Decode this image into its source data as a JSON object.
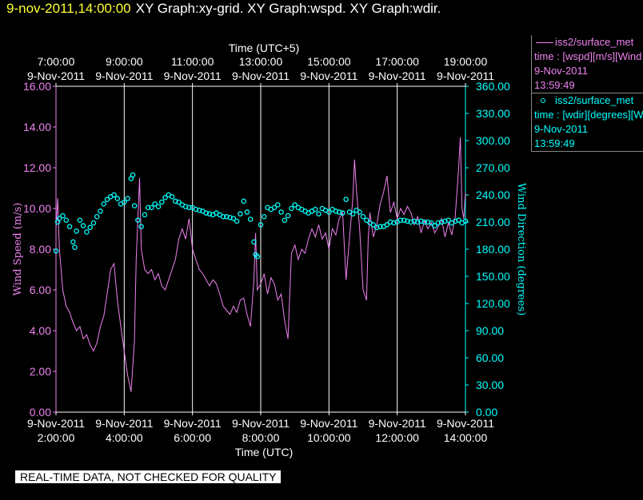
{
  "header": {
    "time": "9-nov-2011,14:00:00",
    "graphs": "XY Graph:xy-grid.  XY Graph:wspd.  XY Graph:wdir."
  },
  "notice": "REAL-TIME DATA, NOT CHECKED FOR QUALITY",
  "legend": {
    "wspd": {
      "name": "iss2/surface_met",
      "desc": "time : [wspd][m/s][Wind",
      "date": "9-Nov-2011",
      "time": "13:59:49"
    },
    "wdir": {
      "name": "iss2/surface_met",
      "desc": "time : [wdir][degrees][W",
      "date": "9-Nov-2011",
      "time": "13:59:49"
    }
  },
  "colors": {
    "wspd": "#ee82ee",
    "wdir": "#00ffff",
    "grid": "#ffffff",
    "background": "#000000"
  },
  "chart_data": {
    "type": "line",
    "title": "",
    "bottom_axis": {
      "label": "Time (UTC)",
      "ticks": [
        {
          "hour": 2,
          "date": "9-Nov-2011",
          "time": "2:00:00"
        },
        {
          "hour": 4,
          "date": "9-Nov-2011",
          "time": "4:00:00"
        },
        {
          "hour": 6,
          "date": "9-Nov-2011",
          "time": "6:00:00"
        },
        {
          "hour": 8,
          "date": "9-Nov-2011",
          "time": "8:00:00"
        },
        {
          "hour": 10,
          "date": "9-Nov-2011",
          "time": "10:00:00"
        },
        {
          "hour": 12,
          "date": "9-Nov-2011",
          "time": "12:00:00"
        },
        {
          "hour": 14,
          "date": "9-Nov-2011",
          "time": "14:00:00"
        }
      ],
      "range": [
        2,
        14
      ]
    },
    "top_axis": {
      "label": "Time (UTC+5)",
      "ticks": [
        {
          "hour": 2,
          "date": "9-Nov-2011",
          "time": "7:00:00"
        },
        {
          "hour": 4,
          "date": "9-Nov-2011",
          "time": "9:00:00"
        },
        {
          "hour": 6,
          "date": "9-Nov-2011",
          "time": "11:00:00"
        },
        {
          "hour": 8,
          "date": "9-Nov-2011",
          "time": "13:00:00"
        },
        {
          "hour": 10,
          "date": "9-Nov-2011",
          "time": "15:00:00"
        },
        {
          "hour": 12,
          "date": "9-Nov-2011",
          "time": "17:00:00"
        },
        {
          "hour": 14,
          "date": "9-Nov-2011",
          "time": "19:00:00"
        }
      ]
    },
    "left_axis": {
      "label": "Wind Speed (m/s)",
      "range": [
        0,
        16
      ],
      "ticks": [
        "0.00",
        "2.00",
        "4.00",
        "6.00",
        "8.00",
        "10.00",
        "12.00",
        "14.00",
        "16.00"
      ]
    },
    "right_axis": {
      "label": "Wind Direction (degrees)",
      "range": [
        0,
        360
      ],
      "ticks": [
        "0.00",
        "30.00",
        "60.00",
        "90.00",
        "120.00",
        "150.00",
        "180.00",
        "210.00",
        "240.00",
        "270.00",
        "300.00",
        "330.00",
        "360.00"
      ]
    },
    "series": [
      {
        "key": "wspd",
        "style": "line",
        "axis": "left",
        "points": [
          [
            2.0,
            9.0
          ],
          [
            2.05,
            10.5
          ],
          [
            2.1,
            8.0
          ],
          [
            2.2,
            6.0
          ],
          [
            2.3,
            5.2
          ],
          [
            2.4,
            4.9
          ],
          [
            2.5,
            4.4
          ],
          [
            2.6,
            4.0
          ],
          [
            2.7,
            4.2
          ],
          [
            2.8,
            3.6
          ],
          [
            2.9,
            3.8
          ],
          [
            3.0,
            3.3
          ],
          [
            3.1,
            3.0
          ],
          [
            3.2,
            3.4
          ],
          [
            3.3,
            4.2
          ],
          [
            3.4,
            4.7
          ],
          [
            3.5,
            5.8
          ],
          [
            3.6,
            7.0
          ],
          [
            3.7,
            7.3
          ],
          [
            3.8,
            5.5
          ],
          [
            3.9,
            4.2
          ],
          [
            4.0,
            3.0
          ],
          [
            4.1,
            1.8
          ],
          [
            4.2,
            1.0
          ],
          [
            4.3,
            3.5
          ],
          [
            4.35,
            7.5
          ],
          [
            4.4,
            9.5
          ],
          [
            4.45,
            11.5
          ],
          [
            4.5,
            8.0
          ],
          [
            4.6,
            7.0
          ],
          [
            4.7,
            6.8
          ],
          [
            4.8,
            7.0
          ],
          [
            4.9,
            6.5
          ],
          [
            5.0,
            6.8
          ],
          [
            5.1,
            6.2
          ],
          [
            5.2,
            6.0
          ],
          [
            5.3,
            6.5
          ],
          [
            5.4,
            7.0
          ],
          [
            5.5,
            7.5
          ],
          [
            5.6,
            8.5
          ],
          [
            5.7,
            9.0
          ],
          [
            5.8,
            8.5
          ],
          [
            5.9,
            9.5
          ],
          [
            6.0,
            8.0
          ],
          [
            6.1,
            7.5
          ],
          [
            6.2,
            7.0
          ],
          [
            6.3,
            6.8
          ],
          [
            6.4,
            6.5
          ],
          [
            6.5,
            6.2
          ],
          [
            6.6,
            6.5
          ],
          [
            6.7,
            6.3
          ],
          [
            6.8,
            5.8
          ],
          [
            6.9,
            5.2
          ],
          [
            7.0,
            5.0
          ],
          [
            7.1,
            4.8
          ],
          [
            7.2,
            5.2
          ],
          [
            7.3,
            4.9
          ],
          [
            7.4,
            5.5
          ],
          [
            7.5,
            5.6
          ],
          [
            7.6,
            4.8
          ],
          [
            7.7,
            4.2
          ],
          [
            7.8,
            6.5
          ],
          [
            7.85,
            8.8
          ],
          [
            7.9,
            6.0
          ],
          [
            8.0,
            6.3
          ],
          [
            8.1,
            6.8
          ],
          [
            8.2,
            5.8
          ],
          [
            8.3,
            6.6
          ],
          [
            8.4,
            6.3
          ],
          [
            8.5,
            5.5
          ],
          [
            8.6,
            5.8
          ],
          [
            8.7,
            4.5
          ],
          [
            8.8,
            3.6
          ],
          [
            8.9,
            7.8
          ],
          [
            9.0,
            8.2
          ],
          [
            9.1,
            7.5
          ],
          [
            9.2,
            8.0
          ],
          [
            9.3,
            7.8
          ],
          [
            9.4,
            8.5
          ],
          [
            9.5,
            9.0
          ],
          [
            9.6,
            8.6
          ],
          [
            9.7,
            9.2
          ],
          [
            9.8,
            8.5
          ],
          [
            9.9,
            8.8
          ],
          [
            10.0,
            8.0
          ],
          [
            10.1,
            9.0
          ],
          [
            10.2,
            8.7
          ],
          [
            10.3,
            9.5
          ],
          [
            10.4,
            9.8
          ],
          [
            10.5,
            6.5
          ],
          [
            10.6,
            8.5
          ],
          [
            10.7,
            10.5
          ],
          [
            10.75,
            12.4
          ],
          [
            10.8,
            11.0
          ],
          [
            10.9,
            9.0
          ],
          [
            11.0,
            6.0
          ],
          [
            11.1,
            5.5
          ],
          [
            11.15,
            8.5
          ],
          [
            11.2,
            9.8
          ],
          [
            11.3,
            8.6
          ],
          [
            11.4,
            9.2
          ],
          [
            11.5,
            10.2
          ],
          [
            11.6,
            10.8
          ],
          [
            11.7,
            11.6
          ],
          [
            11.8,
            9.8
          ],
          [
            11.9,
            10.3
          ],
          [
            12.0,
            9.5
          ],
          [
            12.1,
            10.0
          ],
          [
            12.2,
            9.7
          ],
          [
            12.3,
            10.1
          ],
          [
            12.4,
            9.8
          ],
          [
            12.5,
            9.2
          ],
          [
            12.6,
            9.6
          ],
          [
            12.7,
            8.8
          ],
          [
            12.8,
            9.4
          ],
          [
            12.9,
            9.0
          ],
          [
            13.0,
            9.3
          ],
          [
            13.1,
            8.8
          ],
          [
            13.2,
            9.1
          ],
          [
            13.3,
            9.5
          ],
          [
            13.4,
            8.6
          ],
          [
            13.5,
            9.3
          ],
          [
            13.6,
            8.7
          ],
          [
            13.7,
            9.6
          ],
          [
            13.8,
            12.0
          ],
          [
            13.85,
            13.5
          ],
          [
            13.9,
            10.0
          ],
          [
            13.95,
            9.5
          ],
          [
            14.0,
            10.8
          ]
        ]
      },
      {
        "key": "wdir",
        "style": "scatter",
        "axis": "right",
        "points": [
          [
            2.0,
            178
          ],
          [
            2.05,
            210
          ],
          [
            2.1,
            214
          ],
          [
            2.2,
            217
          ],
          [
            2.3,
            212
          ],
          [
            2.4,
            205
          ],
          [
            2.5,
            188
          ],
          [
            2.55,
            182
          ],
          [
            2.6,
            200
          ],
          [
            2.7,
            212
          ],
          [
            2.8,
            206
          ],
          [
            2.9,
            199
          ],
          [
            3.0,
            204
          ],
          [
            3.1,
            209
          ],
          [
            3.2,
            216
          ],
          [
            3.3,
            222
          ],
          [
            3.4,
            230
          ],
          [
            3.5,
            235
          ],
          [
            3.6,
            238
          ],
          [
            3.7,
            240
          ],
          [
            3.8,
            236
          ],
          [
            3.9,
            230
          ],
          [
            4.0,
            232
          ],
          [
            4.1,
            236
          ],
          [
            4.2,
            258
          ],
          [
            4.25,
            262
          ],
          [
            4.3,
            228
          ],
          [
            4.4,
            212
          ],
          [
            4.5,
            205
          ],
          [
            4.6,
            218
          ],
          [
            4.7,
            226
          ],
          [
            4.8,
            226
          ],
          [
            4.9,
            230
          ],
          [
            5.0,
            227
          ],
          [
            5.1,
            232
          ],
          [
            5.2,
            237
          ],
          [
            5.3,
            240
          ],
          [
            5.4,
            238
          ],
          [
            5.5,
            233
          ],
          [
            5.6,
            232
          ],
          [
            5.7,
            229
          ],
          [
            5.8,
            227
          ],
          [
            5.9,
            226
          ],
          [
            6.0,
            226
          ],
          [
            6.1,
            224
          ],
          [
            6.2,
            223
          ],
          [
            6.3,
            222
          ],
          [
            6.4,
            220
          ],
          [
            6.5,
            219
          ],
          [
            6.6,
            218
          ],
          [
            6.7,
            220
          ],
          [
            6.8,
            218
          ],
          [
            6.9,
            216
          ],
          [
            7.0,
            216
          ],
          [
            7.1,
            215
          ],
          [
            7.2,
            214
          ],
          [
            7.3,
            211
          ],
          [
            7.4,
            219
          ],
          [
            7.5,
            233
          ],
          [
            7.6,
            221
          ],
          [
            7.7,
            213
          ],
          [
            7.8,
            188
          ],
          [
            7.85,
            174
          ],
          [
            7.9,
            172
          ],
          [
            8.0,
            207
          ],
          [
            8.1,
            216
          ],
          [
            8.2,
            226
          ],
          [
            8.3,
            224
          ],
          [
            8.4,
            226
          ],
          [
            8.5,
            229
          ],
          [
            8.6,
            221
          ],
          [
            8.7,
            212
          ],
          [
            8.8,
            217
          ],
          [
            8.9,
            225
          ],
          [
            9.0,
            229
          ],
          [
            9.1,
            226
          ],
          [
            9.2,
            224
          ],
          [
            9.3,
            222
          ],
          [
            9.4,
            220
          ],
          [
            9.5,
            222
          ],
          [
            9.6,
            224
          ],
          [
            9.7,
            219
          ],
          [
            9.8,
            225
          ],
          [
            9.9,
            223
          ],
          [
            10.0,
            221
          ],
          [
            10.1,
            224
          ],
          [
            10.2,
            222
          ],
          [
            10.3,
            221
          ],
          [
            10.4,
            220
          ],
          [
            10.5,
            235
          ],
          [
            10.6,
            221
          ],
          [
            10.7,
            219
          ],
          [
            10.8,
            223
          ],
          [
            10.9,
            221
          ],
          [
            11.0,
            216
          ],
          [
            11.1,
            212
          ],
          [
            11.2,
            209
          ],
          [
            11.3,
            207
          ],
          [
            11.4,
            204
          ],
          [
            11.5,
            205
          ],
          [
            11.6,
            205
          ],
          [
            11.7,
            207
          ],
          [
            11.8,
            210
          ],
          [
            11.9,
            209
          ],
          [
            12.0,
            210
          ],
          [
            12.1,
            212
          ],
          [
            12.2,
            212
          ],
          [
            12.3,
            211
          ],
          [
            12.4,
            210
          ],
          [
            12.5,
            211
          ],
          [
            12.6,
            210
          ],
          [
            12.7,
            211
          ],
          [
            12.8,
            210
          ],
          [
            12.9,
            210
          ],
          [
            13.0,
            209
          ],
          [
            13.1,
            206
          ],
          [
            13.2,
            209
          ],
          [
            13.3,
            210
          ],
          [
            13.4,
            211
          ],
          [
            13.5,
            212
          ],
          [
            13.6,
            209
          ],
          [
            13.7,
            211
          ],
          [
            13.8,
            212
          ],
          [
            13.9,
            209
          ],
          [
            14.0,
            211
          ]
        ]
      }
    ]
  }
}
